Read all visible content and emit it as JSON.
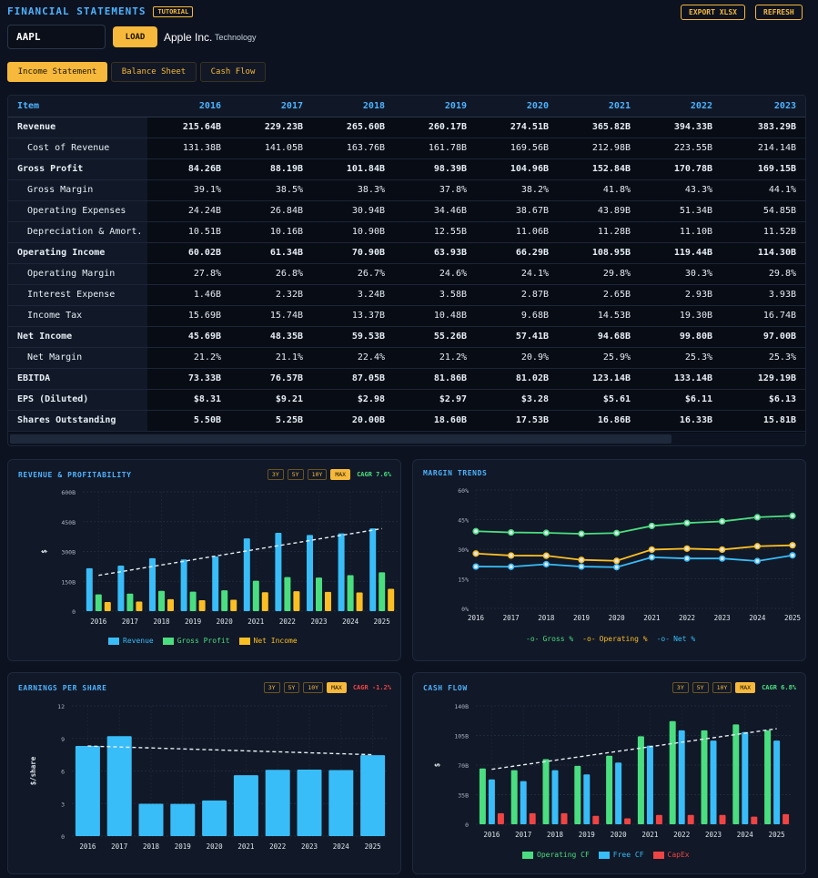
{
  "header": {
    "title": "FINANCIAL STATEMENTS",
    "tutorial": "TUTORIAL",
    "export": "EXPORT XLSX",
    "refresh": "REFRESH"
  },
  "search": {
    "ticker": "AAPL",
    "load": "LOAD",
    "company": "Apple Inc.",
    "sector": "Technology"
  },
  "tabs": [
    "Income Statement",
    "Balance Sheet",
    "Cash Flow"
  ],
  "table": {
    "columns": [
      "Item",
      "2016",
      "2017",
      "2018",
      "2019",
      "2020",
      "2021",
      "2022",
      "2023"
    ],
    "rows": [
      {
        "label": "Revenue",
        "sub": false,
        "values": [
          "215.64B",
          "229.23B",
          "265.60B",
          "260.17B",
          "274.51B",
          "365.82B",
          "394.33B",
          "383.29B"
        ]
      },
      {
        "label": "Cost of Revenue",
        "sub": true,
        "values": [
          "131.38B",
          "141.05B",
          "163.76B",
          "161.78B",
          "169.56B",
          "212.98B",
          "223.55B",
          "214.14B"
        ]
      },
      {
        "label": "Gross Profit",
        "sub": false,
        "values": [
          "84.26B",
          "88.19B",
          "101.84B",
          "98.39B",
          "104.96B",
          "152.84B",
          "170.78B",
          "169.15B"
        ]
      },
      {
        "label": "Gross Margin",
        "sub": true,
        "values": [
          "39.1%",
          "38.5%",
          "38.3%",
          "37.8%",
          "38.2%",
          "41.8%",
          "43.3%",
          "44.1%"
        ]
      },
      {
        "label": "Operating Expenses",
        "sub": true,
        "values": [
          "24.24B",
          "26.84B",
          "30.94B",
          "34.46B",
          "38.67B",
          "43.89B",
          "51.34B",
          "54.85B"
        ]
      },
      {
        "label": "Depreciation & Amort.",
        "sub": true,
        "values": [
          "10.51B",
          "10.16B",
          "10.90B",
          "12.55B",
          "11.06B",
          "11.28B",
          "11.10B",
          "11.52B"
        ]
      },
      {
        "label": "Operating Income",
        "sub": false,
        "values": [
          "60.02B",
          "61.34B",
          "70.90B",
          "63.93B",
          "66.29B",
          "108.95B",
          "119.44B",
          "114.30B"
        ]
      },
      {
        "label": "Operating Margin",
        "sub": true,
        "values": [
          "27.8%",
          "26.8%",
          "26.7%",
          "24.6%",
          "24.1%",
          "29.8%",
          "30.3%",
          "29.8%"
        ]
      },
      {
        "label": "Interest Expense",
        "sub": true,
        "values": [
          "1.46B",
          "2.32B",
          "3.24B",
          "3.58B",
          "2.87B",
          "2.65B",
          "2.93B",
          "3.93B"
        ]
      },
      {
        "label": "Income Tax",
        "sub": true,
        "values": [
          "15.69B",
          "15.74B",
          "13.37B",
          "10.48B",
          "9.68B",
          "14.53B",
          "19.30B",
          "16.74B"
        ]
      },
      {
        "label": "Net Income",
        "sub": false,
        "values": [
          "45.69B",
          "48.35B",
          "59.53B",
          "55.26B",
          "57.41B",
          "94.68B",
          "99.80B",
          "97.00B"
        ]
      },
      {
        "label": "Net Margin",
        "sub": true,
        "values": [
          "21.2%",
          "21.1%",
          "22.4%",
          "21.2%",
          "20.9%",
          "25.9%",
          "25.3%",
          "25.3%"
        ]
      },
      {
        "label": "EBITDA",
        "sub": false,
        "values": [
          "73.33B",
          "76.57B",
          "87.05B",
          "81.86B",
          "81.02B",
          "123.14B",
          "133.14B",
          "129.19B"
        ]
      },
      {
        "label": "EPS (Diluted)",
        "sub": false,
        "values": [
          "$8.31",
          "$9.21",
          "$2.98",
          "$2.97",
          "$3.28",
          "$5.61",
          "$6.11",
          "$6.13"
        ]
      },
      {
        "label": "Shares Outstanding",
        "sub": false,
        "values": [
          "5.50B",
          "5.25B",
          "20.00B",
          "18.60B",
          "17.53B",
          "16.86B",
          "16.33B",
          "15.81B"
        ]
      }
    ]
  },
  "range_buttons": [
    "3Y",
    "5Y",
    "10Y",
    "MAX"
  ],
  "colors": {
    "blue": "#38bdf8",
    "green": "#4ade80",
    "yellow": "#fbbf24",
    "red": "#ef4444",
    "accent": "#f6b93b",
    "title": "#4db3ff"
  },
  "chart_data": [
    {
      "id": "rev",
      "type": "bar",
      "title": "REVENUE & PROFITABILITY",
      "cagr": "CAGR 7.6%",
      "categories": [
        "2016",
        "2017",
        "2018",
        "2019",
        "2020",
        "2021",
        "2022",
        "2023",
        "2024",
        "2025"
      ],
      "ylabel": "$",
      "ylim": [
        0,
        600
      ],
      "yticks": [
        "0",
        "150B",
        "300B",
        "450B",
        "600B"
      ],
      "series": [
        {
          "name": "Revenue",
          "values": [
            216,
            229,
            266,
            260,
            275,
            366,
            394,
            383,
            391,
            416
          ]
        },
        {
          "name": "Gross Profit",
          "values": [
            84,
            88,
            102,
            98,
            105,
            153,
            171,
            169,
            181,
            195
          ]
        },
        {
          "name": "Net Income",
          "values": [
            46,
            48,
            60,
            55,
            57,
            95,
            100,
            97,
            94,
            112
          ]
        }
      ],
      "trend": [
        180,
        415
      ]
    },
    {
      "id": "margin",
      "type": "line",
      "title": "MARGIN TRENDS",
      "categories": [
        "2016",
        "2017",
        "2018",
        "2019",
        "2020",
        "2021",
        "2022",
        "2023",
        "2024",
        "2025"
      ],
      "ylim": [
        0,
        60
      ],
      "yticks": [
        "0%",
        "15%",
        "30%",
        "45%",
        "60%"
      ],
      "series": [
        {
          "name": "Gross %",
          "values": [
            39.1,
            38.5,
            38.3,
            37.8,
            38.2,
            41.8,
            43.3,
            44.1,
            46.2,
            46.9
          ]
        },
        {
          "name": "Operating %",
          "values": [
            27.8,
            26.8,
            26.7,
            24.6,
            24.1,
            29.8,
            30.3,
            29.8,
            31.5,
            32.0
          ]
        },
        {
          "name": "Net %",
          "values": [
            21.2,
            21.1,
            22.4,
            21.2,
            20.9,
            25.9,
            25.3,
            25.3,
            24.0,
            26.9
          ]
        }
      ]
    },
    {
      "id": "eps",
      "type": "bar",
      "title": "EARNINGS PER SHARE",
      "cagr": "CAGR -1.2%",
      "categories": [
        "2016",
        "2017",
        "2018",
        "2019",
        "2020",
        "2021",
        "2022",
        "2023",
        "2024",
        "2025"
      ],
      "ylabel": "$/share",
      "ylim": [
        0,
        12
      ],
      "yticks": [
        "0",
        "3",
        "6",
        "9",
        "12"
      ],
      "series": [
        {
          "name": "EPS",
          "values": [
            8.31,
            9.21,
            2.98,
            2.97,
            3.28,
            5.61,
            6.11,
            6.13,
            6.08,
            7.46
          ]
        }
      ],
      "trend": [
        8.3,
        7.5
      ]
    },
    {
      "id": "cf",
      "type": "bar",
      "title": "CASH FLOW",
      "cagr": "CAGR 6.8%",
      "categories": [
        "2016",
        "2017",
        "2018",
        "2019",
        "2020",
        "2021",
        "2022",
        "2023",
        "2024",
        "2025"
      ],
      "ylabel": "$",
      "ylim": [
        0,
        140
      ],
      "yticks": [
        "0",
        "35B",
        "70B",
        "105B",
        "140B"
      ],
      "series": [
        {
          "name": "Operating CF",
          "values": [
            66,
            64,
            77,
            69,
            81,
            104,
            122,
            111,
            118,
            111
          ]
        },
        {
          "name": "Free CF",
          "values": [
            53,
            51,
            64,
            59,
            73,
            93,
            111,
            99,
            109,
            99
          ]
        },
        {
          "name": "CapEx",
          "values": [
            13,
            13,
            13,
            10,
            7,
            11,
            11,
            11,
            9,
            12
          ]
        }
      ],
      "trend": [
        65,
        113
      ]
    }
  ]
}
